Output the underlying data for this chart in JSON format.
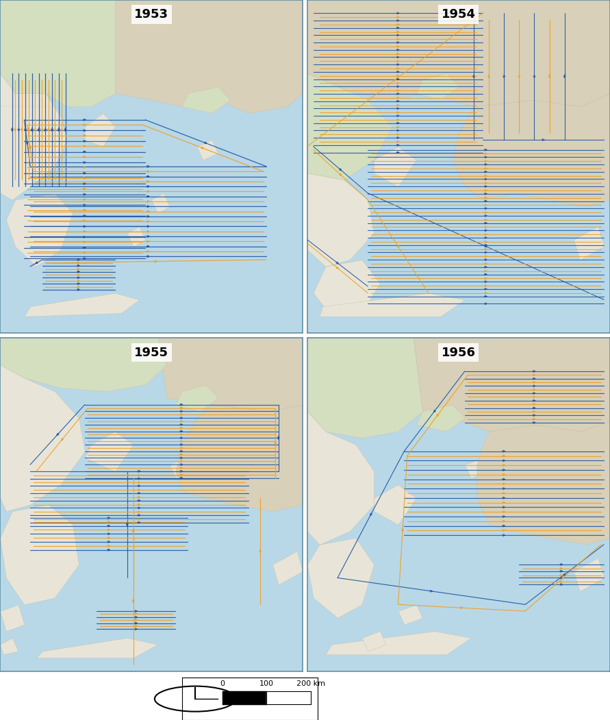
{
  "sea_color": "#b8d8e8",
  "land_color_main": "#e8e5d8",
  "land_color_green": "#d4dfc0",
  "land_color_mountain": "#d8d0b8",
  "border_color": "#6090a8",
  "title_fontsize": 13,
  "title_fontweight": "bold",
  "blue": "#2255a0",
  "orange": "#f0a020",
  "fig_bg": "#ffffff",
  "scale_box_color": "#ffffff",
  "years": [
    "1953",
    "1954",
    "1955",
    "1956"
  ]
}
